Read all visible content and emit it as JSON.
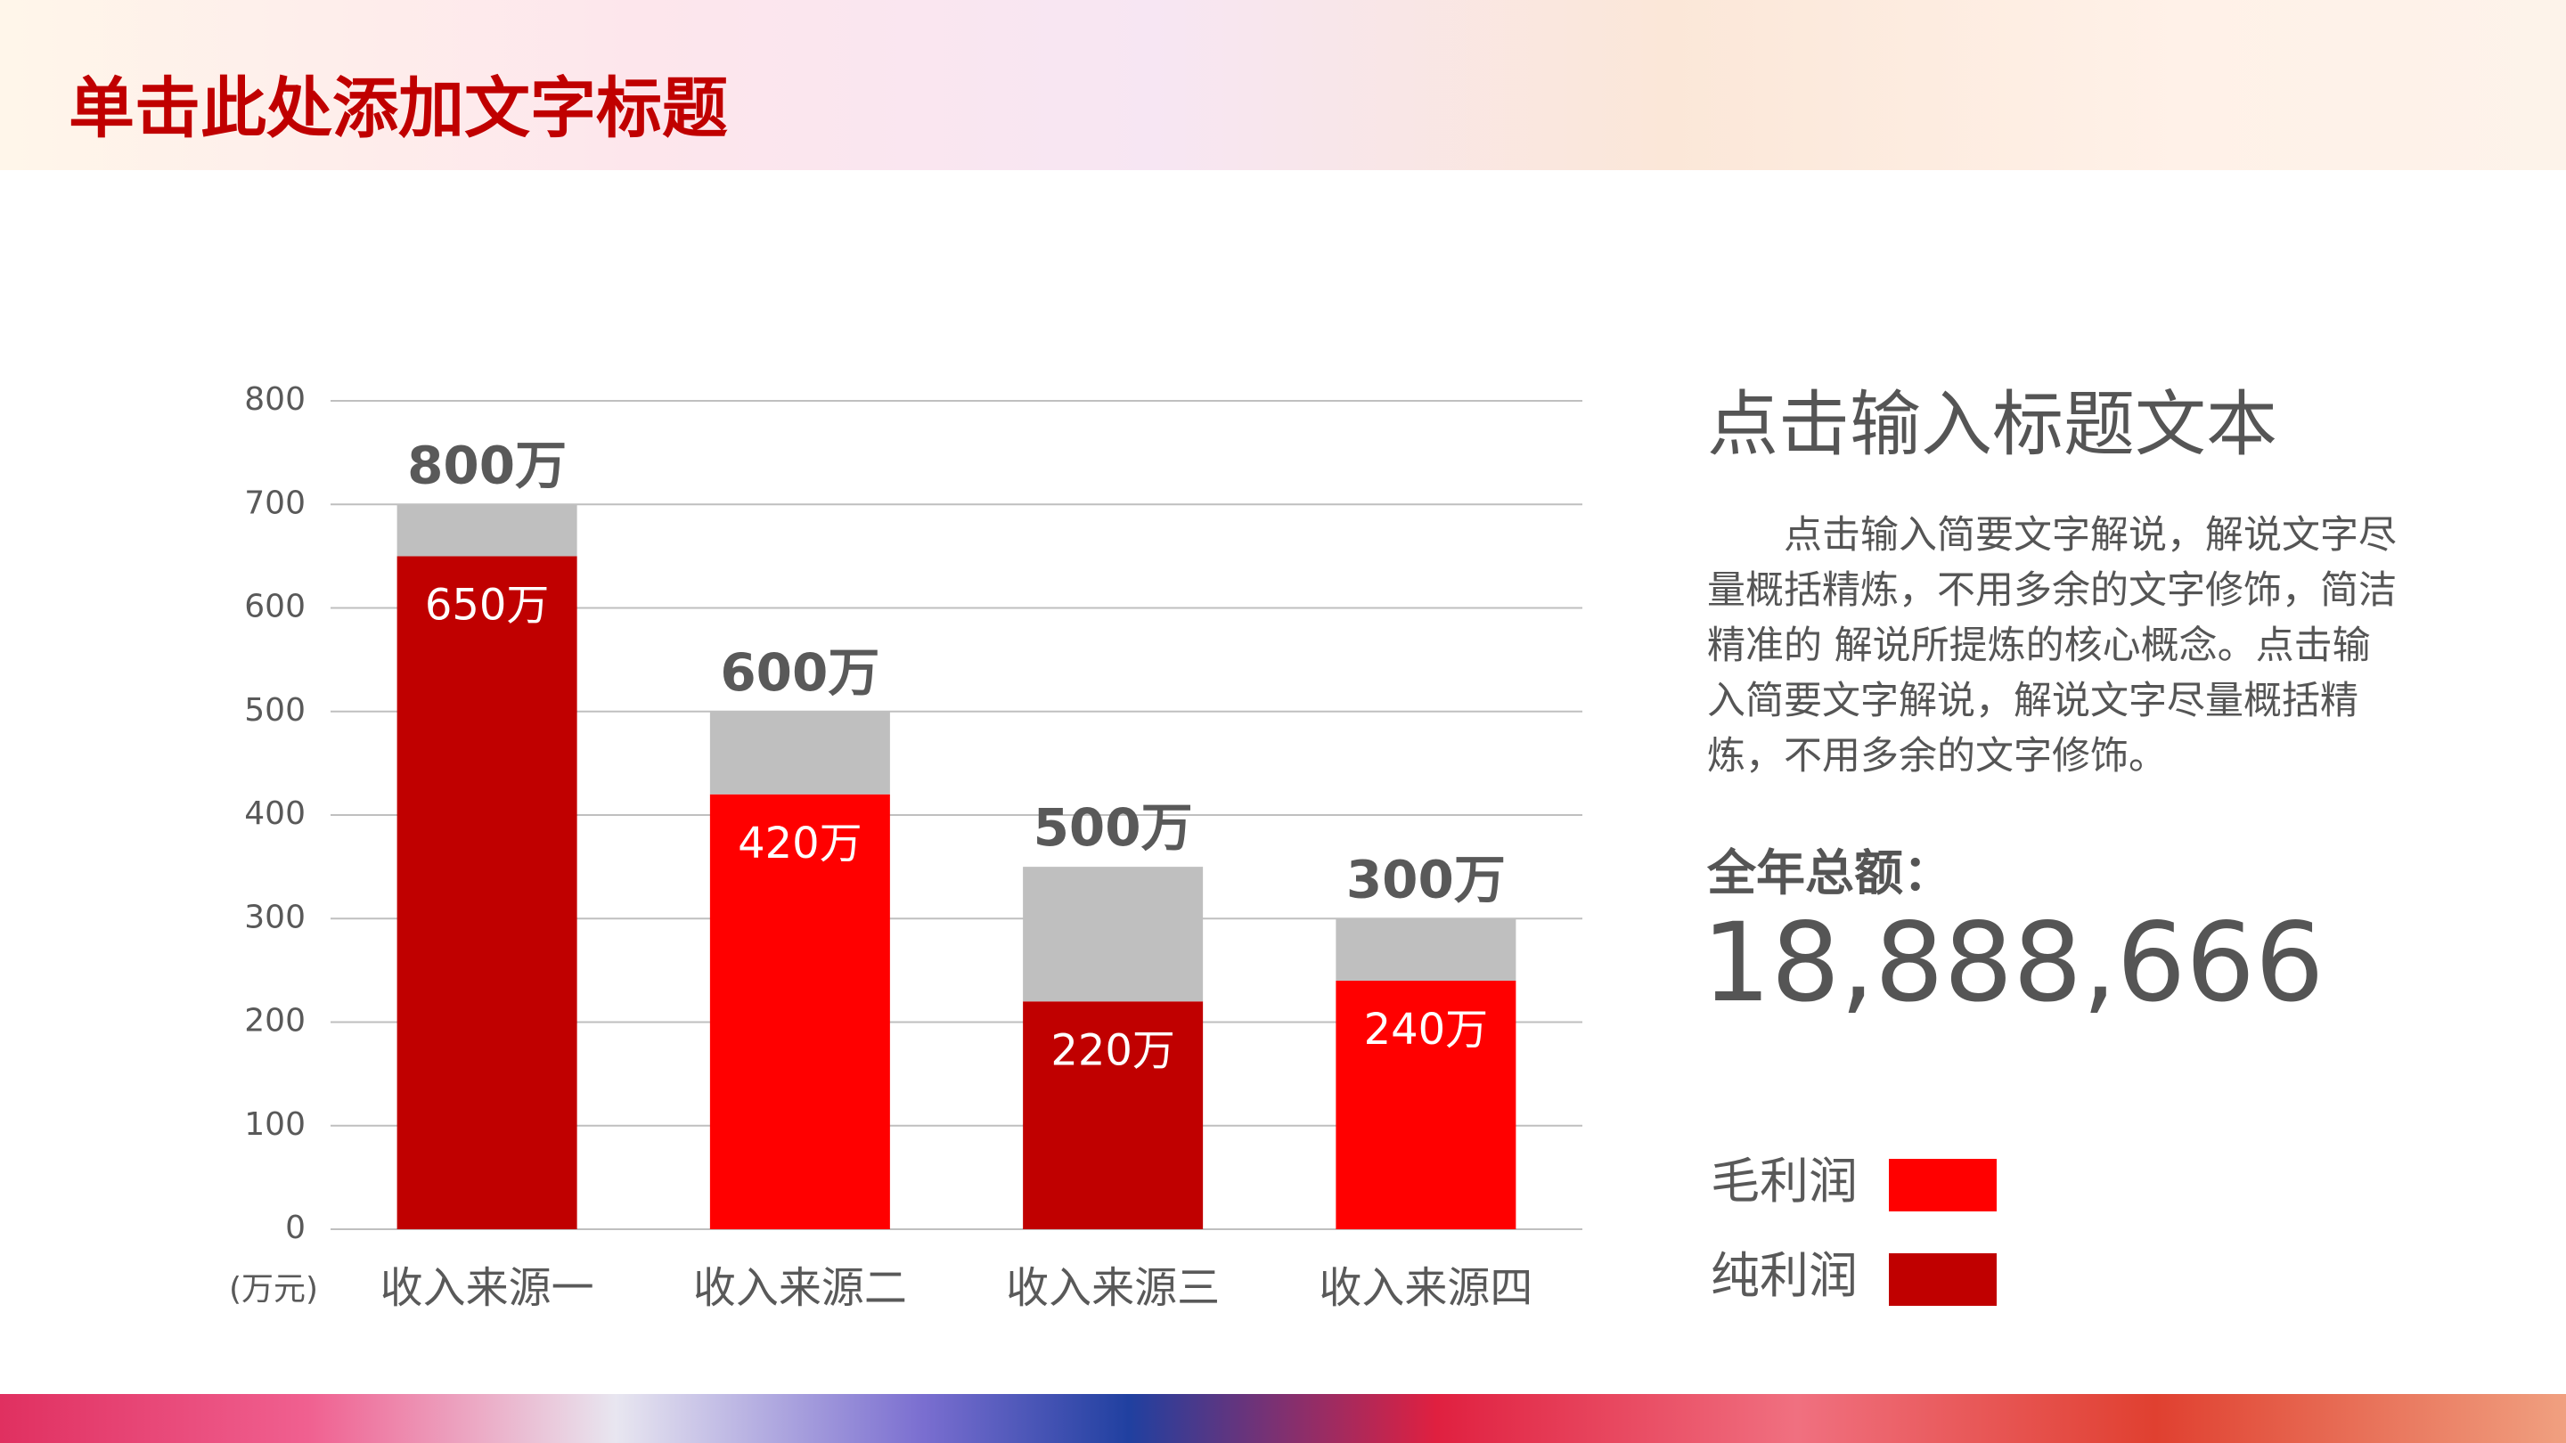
{
  "header": {
    "title": "单击此处添加文字标题"
  },
  "chart_data": {
    "type": "bar",
    "stacked": true,
    "categories": [
      "收入来源一",
      "收入来源二",
      "收入来源三",
      "收入来源四"
    ],
    "y_unit": "(万元)",
    "series": [
      {
        "name": "毛利润",
        "color": "#ff0000",
        "values": [
          null,
          420,
          null,
          240
        ],
        "value_labels": [
          null,
          "420万",
          null,
          "240万"
        ]
      },
      {
        "name": "纯利润",
        "color": "#c00000",
        "values": [
          650,
          null,
          220,
          null
        ],
        "value_labels": [
          "650万",
          null,
          "220万",
          null
        ]
      },
      {
        "color": "#bfbfbf",
        "values": [
          50,
          80,
          130,
          60
        ]
      }
    ],
    "annotations": [
      "800万",
      "600万",
      "500万",
      "300万"
    ],
    "ylim": [
      0,
      800
    ],
    "yticks": [
      0,
      100,
      200,
      300,
      400,
      500,
      600,
      700,
      800
    ],
    "grid": true
  },
  "side": {
    "heading": "点击输入标题文本",
    "paragraph": "点击输入简要文字解说，解说文字尽量概括精炼，不用多余的文字修饰，简洁精准的 解说所提炼的核心概念。点击输入简要文字解说，解说文字尽量概括精炼，不用多余的文字修饰。",
    "total_label": "全年总额：",
    "total_value": "18,888,666"
  }
}
